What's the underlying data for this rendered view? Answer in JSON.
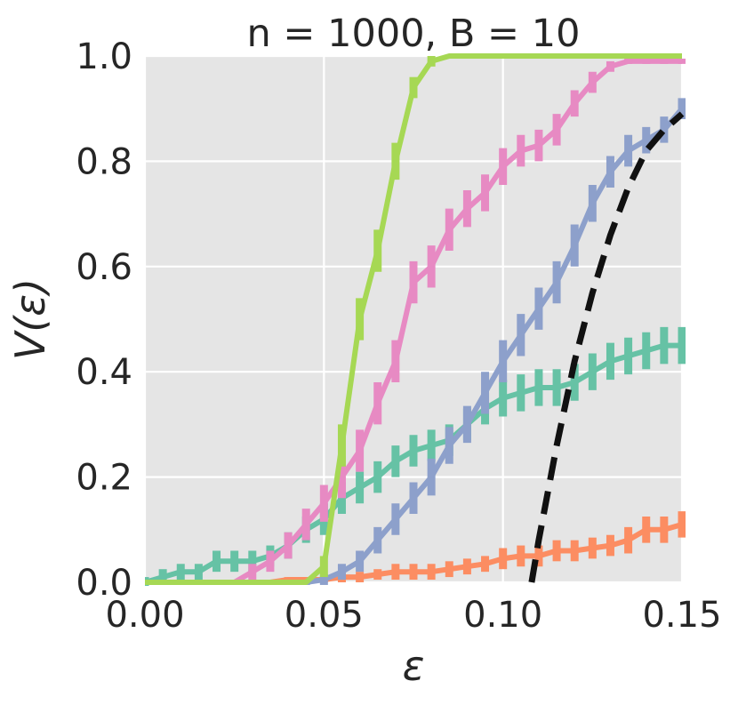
{
  "chart_data": {
    "type": "line",
    "title": "n = 1000, B = 10",
    "xlabel": "ε",
    "ylabel": "V(ε)",
    "xlim": [
      0.0,
      0.15
    ],
    "ylim": [
      0.0,
      1.0
    ],
    "xticks": [
      "0.00",
      "0.05",
      "0.10",
      "0.15"
    ],
    "yticks": [
      "0.0",
      "0.2",
      "0.4",
      "0.6",
      "0.8",
      "1.0"
    ],
    "grid": true,
    "background": "#e5e5e5",
    "error_bars": true,
    "series": [
      {
        "color": "#66c2a5",
        "x": [
          0.0,
          0.005,
          0.01,
          0.015,
          0.02,
          0.025,
          0.03,
          0.035,
          0.04,
          0.045,
          0.05,
          0.055,
          0.06,
          0.065,
          0.07,
          0.075,
          0.08,
          0.085,
          0.09,
          0.095,
          0.1,
          0.105,
          0.11,
          0.115,
          0.12,
          0.125,
          0.13,
          0.135,
          0.14,
          0.145,
          0.15
        ],
        "y": [
          0.0,
          0.01,
          0.02,
          0.02,
          0.04,
          0.04,
          0.04,
          0.05,
          0.07,
          0.1,
          0.12,
          0.16,
          0.18,
          0.2,
          0.23,
          0.25,
          0.26,
          0.27,
          0.3,
          0.33,
          0.35,
          0.36,
          0.37,
          0.37,
          0.38,
          0.4,
          0.42,
          0.43,
          0.44,
          0.45,
          0.45
        ],
        "err": [
          0.01,
          0.015,
          0.015,
          0.015,
          0.02,
          0.02,
          0.02,
          0.02,
          0.025,
          0.025,
          0.03,
          0.03,
          0.03,
          0.03,
          0.03,
          0.03,
          0.03,
          0.03,
          0.03,
          0.03,
          0.035,
          0.035,
          0.035,
          0.035,
          0.035,
          0.035,
          0.035,
          0.035,
          0.035,
          0.035,
          0.035
        ]
      },
      {
        "color": "#fc8d62",
        "x": [
          0.0,
          0.005,
          0.01,
          0.015,
          0.02,
          0.025,
          0.03,
          0.035,
          0.04,
          0.045,
          0.05,
          0.055,
          0.06,
          0.065,
          0.07,
          0.075,
          0.08,
          0.085,
          0.09,
          0.095,
          0.1,
          0.105,
          0.11,
          0.115,
          0.12,
          0.125,
          0.13,
          0.135,
          0.14,
          0.145,
          0.15
        ],
        "y": [
          0.0,
          0.0,
          0.0,
          0.0,
          0.0,
          0.0,
          0.0,
          0.0,
          0.005,
          0.005,
          0.005,
          0.01,
          0.01,
          0.015,
          0.02,
          0.02,
          0.02,
          0.025,
          0.03,
          0.035,
          0.045,
          0.05,
          0.05,
          0.06,
          0.06,
          0.065,
          0.07,
          0.08,
          0.1,
          0.1,
          0.11
        ],
        "err": [
          0.0,
          0.0,
          0.0,
          0.0,
          0.0,
          0.0,
          0.0,
          0.0,
          0.005,
          0.005,
          0.005,
          0.01,
          0.01,
          0.01,
          0.015,
          0.015,
          0.015,
          0.015,
          0.015,
          0.015,
          0.02,
          0.02,
          0.02,
          0.02,
          0.02,
          0.02,
          0.02,
          0.025,
          0.025,
          0.025,
          0.025
        ]
      },
      {
        "color": "#8da0cb",
        "x": [
          0.045,
          0.05,
          0.055,
          0.06,
          0.065,
          0.07,
          0.075,
          0.08,
          0.085,
          0.09,
          0.095,
          0.1,
          0.105,
          0.11,
          0.115,
          0.12,
          0.125,
          0.13,
          0.135,
          0.14,
          0.145,
          0.15
        ],
        "y": [
          0.0,
          0.005,
          0.02,
          0.04,
          0.08,
          0.12,
          0.16,
          0.2,
          0.26,
          0.3,
          0.36,
          0.42,
          0.47,
          0.52,
          0.57,
          0.64,
          0.72,
          0.78,
          0.82,
          0.84,
          0.86,
          0.9
        ],
        "err": [
          0.005,
          0.01,
          0.015,
          0.02,
          0.025,
          0.03,
          0.03,
          0.035,
          0.035,
          0.035,
          0.04,
          0.04,
          0.04,
          0.04,
          0.04,
          0.04,
          0.035,
          0.03,
          0.03,
          0.025,
          0.025,
          0.02
        ]
      },
      {
        "color": "#e78ac3",
        "x": [
          0.025,
          0.03,
          0.035,
          0.04,
          0.045,
          0.05,
          0.055,
          0.06,
          0.065,
          0.07,
          0.075,
          0.08,
          0.085,
          0.09,
          0.095,
          0.1,
          0.105,
          0.11,
          0.115,
          0.12,
          0.125,
          0.13,
          0.135,
          0.14,
          0.145,
          0.15
        ],
        "y": [
          0.0,
          0.02,
          0.04,
          0.07,
          0.11,
          0.15,
          0.2,
          0.25,
          0.34,
          0.42,
          0.57,
          0.6,
          0.67,
          0.71,
          0.74,
          0.79,
          0.82,
          0.83,
          0.86,
          0.91,
          0.95,
          0.98,
          0.99,
          0.99,
          0.99,
          0.99
        ],
        "err": [
          0.0,
          0.015,
          0.02,
          0.025,
          0.03,
          0.035,
          0.04,
          0.04,
          0.04,
          0.04,
          0.04,
          0.04,
          0.04,
          0.035,
          0.035,
          0.035,
          0.03,
          0.03,
          0.03,
          0.025,
          0.02,
          0.01,
          0.005,
          0.005,
          0.005,
          0.005
        ]
      },
      {
        "color": "#a6d854",
        "x": [
          0.0,
          0.005,
          0.01,
          0.015,
          0.02,
          0.025,
          0.03,
          0.035,
          0.04,
          0.045,
          0.05,
          0.055,
          0.06,
          0.065,
          0.07,
          0.075,
          0.08,
          0.085,
          0.09,
          0.095,
          0.1,
          0.105,
          0.11,
          0.115,
          0.12,
          0.125,
          0.13,
          0.135,
          0.14,
          0.145,
          0.15
        ],
        "y": [
          0.0,
          0.0,
          0.0,
          0.0,
          0.0,
          0.0,
          0.0,
          0.0,
          0.0,
          0.0,
          0.03,
          0.26,
          0.5,
          0.63,
          0.8,
          0.94,
          0.99,
          1.0,
          1.0,
          1.0,
          1.0,
          1.0,
          1.0,
          1.0,
          1.0,
          1.0,
          1.0,
          1.0,
          1.0,
          1.0,
          1.0
        ],
        "err": [
          0.0,
          0.0,
          0.0,
          0.0,
          0.0,
          0.0,
          0.0,
          0.0,
          0.0,
          0.0,
          0.02,
          0.04,
          0.04,
          0.04,
          0.035,
          0.02,
          0.01,
          0.0,
          0.0,
          0.0,
          0.0,
          0.0,
          0.0,
          0.0,
          0.0,
          0.0,
          0.0,
          0.0,
          0.0,
          0.0,
          0.0
        ]
      },
      {
        "color": "#111111",
        "style": "dashed",
        "x": [
          0.108,
          0.11,
          0.115,
          0.12,
          0.125,
          0.13,
          0.135,
          0.14,
          0.145,
          0.15
        ],
        "y": [
          0.0,
          0.08,
          0.26,
          0.42,
          0.55,
          0.66,
          0.75,
          0.82,
          0.86,
          0.89
        ]
      }
    ]
  }
}
